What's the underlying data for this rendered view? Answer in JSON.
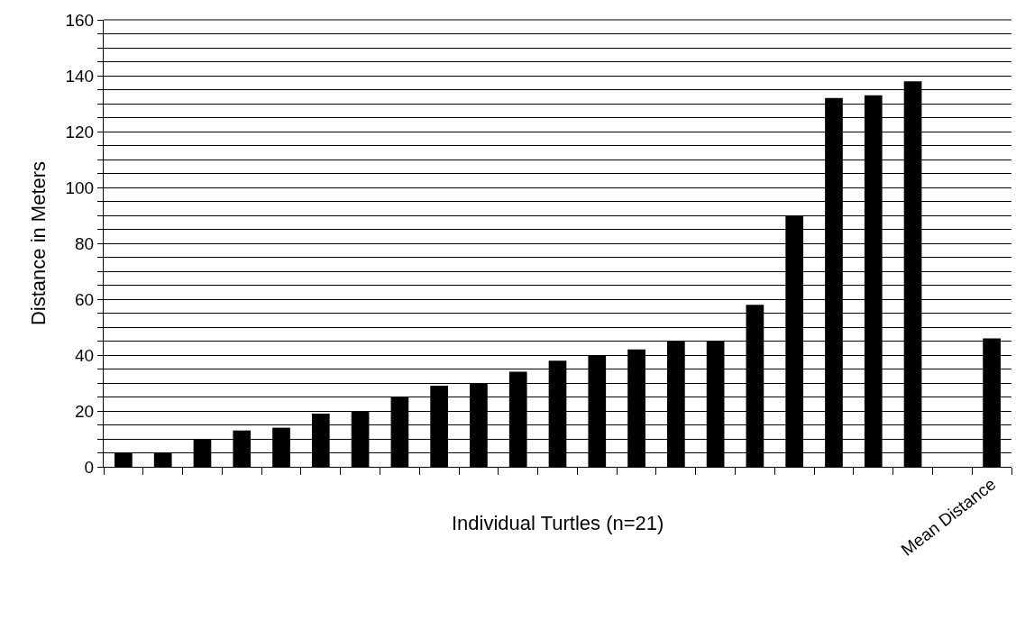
{
  "chart_data": {
    "type": "bar",
    "categories": [
      null,
      null,
      null,
      null,
      null,
      null,
      null,
      null,
      null,
      null,
      null,
      null,
      null,
      null,
      null,
      null,
      null,
      null,
      null,
      null,
      null,
      null,
      "Mean Distance"
    ],
    "values": [
      5,
      5,
      10,
      13,
      14,
      19,
      20,
      25,
      29,
      30,
      34,
      38,
      40,
      42,
      45,
      45,
      58,
      90,
      132,
      133,
      138,
      null,
      46
    ],
    "color": "#000000",
    "xlabel": "Individual Turtles (n=21)",
    "ylabel": "Distance in Meters",
    "ylim": [
      0,
      160
    ],
    "yticks": [
      0,
      {
        "value": 5,
        "label": null
      },
      {
        "value": 10,
        "label": null
      },
      {
        "value": 15,
        "label": null
      },
      20,
      {
        "value": 25,
        "label": null
      },
      {
        "value": 30,
        "label": null
      },
      {
        "value": 35,
        "label": null
      },
      40,
      {
        "value": 45,
        "label": null
      },
      {
        "value": 50,
        "label": null
      },
      {
        "value": 55,
        "label": null
      },
      60,
      {
        "value": 65,
        "label": null
      },
      {
        "value": 70,
        "label": null
      },
      {
        "value": 75,
        "label": null
      },
      80,
      {
        "value": 85,
        "label": null
      },
      {
        "value": 90,
        "label": null
      },
      {
        "value": 95,
        "label": null
      },
      100,
      {
        "value": 105,
        "label": null
      },
      {
        "value": 110,
        "label": null
      },
      {
        "value": 115,
        "label": null
      },
      120,
      {
        "value": 125,
        "label": null
      },
      {
        "value": 130,
        "label": null
      },
      {
        "value": 135,
        "label": null
      },
      140,
      {
        "value": 145,
        "label": null
      },
      {
        "value": 150,
        "label": null
      },
      {
        "value": 155,
        "label": null
      },
      160
    ],
    "grid": "y"
  }
}
